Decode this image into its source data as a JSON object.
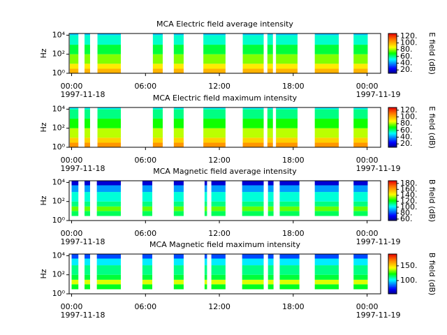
{
  "chart_data": [
    {
      "type": "heatmap",
      "title": "MCA  Electric field average intensity",
      "ylabel": "Hz",
      "colorbar_label": "E field (dB)",
      "xlim": [
        -0.2,
        25.1
      ],
      "ylim": [
        1,
        15000
      ],
      "clim": [
        10,
        128
      ],
      "log_y": true,
      "xticks": [
        {
          "value": 0,
          "label": "00:00",
          "date": "1997-11-18"
        },
        {
          "value": 6,
          "label": "06:00"
        },
        {
          "value": 12,
          "label": "12:00"
        },
        {
          "value": 18,
          "label": "18:00"
        },
        {
          "value": 24,
          "label": "00:00",
          "date": "1997-11-19"
        }
      ],
      "yticks": [
        {
          "value": 1,
          "label": "10⁰"
        },
        {
          "value": 100,
          "label": "10²"
        },
        {
          "value": 10000,
          "label": "10⁴"
        }
      ],
      "cticks": [
        {
          "value": 20,
          "label": "20."
        },
        {
          "value": 40,
          "label": "40."
        },
        {
          "value": 60,
          "label": "60."
        },
        {
          "value": 80,
          "label": "80."
        },
        {
          "value": 100,
          "label": "100."
        },
        {
          "value": 120,
          "label": "120."
        }
      ],
      "segments": [
        [
          -0.15,
          0.55
        ],
        [
          1.05,
          1.5
        ],
        [
          2.1,
          4.0
        ],
        [
          6.6,
          7.4
        ],
        [
          8.3,
          9.1
        ],
        [
          10.7,
          12.5
        ],
        [
          13.9,
          15.6
        ],
        [
          15.9,
          16.35
        ],
        [
          16.6,
          18.35
        ],
        [
          19.75,
          21.7
        ],
        [
          22.9,
          24.05
        ]
      ],
      "bands": [
        1,
        3,
        10,
        100,
        1000,
        10000,
        15000
      ],
      "levels": [
        100,
        90,
        78,
        65,
        55,
        45
      ]
    },
    {
      "type": "heatmap",
      "title": "MCA  Electric field maximum intensity",
      "ylabel": "Hz",
      "colorbar_label": "E field (dB)",
      "xlim": [
        -0.2,
        25.1
      ],
      "ylim": [
        1,
        15000
      ],
      "clim": [
        10,
        128
      ],
      "log_y": true,
      "xticks": [
        {
          "value": 0,
          "label": "00:00",
          "date": "1997-11-18"
        },
        {
          "value": 6,
          "label": "06:00"
        },
        {
          "value": 12,
          "label": "12:00"
        },
        {
          "value": 18,
          "label": "18:00"
        },
        {
          "value": 24,
          "label": "00:00",
          "date": "1997-11-19"
        }
      ],
      "yticks": [
        {
          "value": 1,
          "label": "10⁰"
        },
        {
          "value": 100,
          "label": "10²"
        },
        {
          "value": 10000,
          "label": "10⁴"
        }
      ],
      "cticks": [
        {
          "value": 20,
          "label": "20."
        },
        {
          "value": 40,
          "label": "40."
        },
        {
          "value": 60,
          "label": "60."
        },
        {
          "value": 80,
          "label": "80."
        },
        {
          "value": 100,
          "label": "100."
        },
        {
          "value": 120,
          "label": "120."
        }
      ],
      "segments": [
        [
          -0.15,
          0.55
        ],
        [
          1.05,
          1.5
        ],
        [
          2.1,
          4.0
        ],
        [
          6.6,
          7.4
        ],
        [
          8.3,
          9.1
        ],
        [
          10.7,
          12.5
        ],
        [
          13.9,
          15.6
        ],
        [
          15.9,
          16.35
        ],
        [
          16.6,
          18.35
        ],
        [
          19.75,
          21.7
        ],
        [
          22.9,
          24.05
        ]
      ],
      "bands": [
        1,
        3,
        10,
        100,
        1000,
        10000,
        15000
      ],
      "levels": [
        105,
        95,
        82,
        70,
        60,
        50
      ]
    },
    {
      "type": "heatmap",
      "title": "MCA  Magnetic field average intensity",
      "ylabel": "Hz",
      "colorbar_label": "B field (dB)",
      "xlim": [
        -0.2,
        25.1
      ],
      "ylim": [
        1,
        15000
      ],
      "clim": [
        55,
        189
      ],
      "log_y": true,
      "xticks": [
        {
          "value": 0,
          "label": "00:00",
          "date": "1997-11-18"
        },
        {
          "value": 6,
          "label": "06:00"
        },
        {
          "value": 12,
          "label": "12:00"
        },
        {
          "value": 18,
          "label": "18:00"
        },
        {
          "value": 24,
          "label": "00:00",
          "date": "1997-11-19"
        }
      ],
      "yticks": [
        {
          "value": 1,
          "label": "10⁰"
        },
        {
          "value": 100,
          "label": "10²"
        },
        {
          "value": 10000,
          "label": "10⁴"
        }
      ],
      "cticks": [
        {
          "value": 60,
          "label": "60."
        },
        {
          "value": 80,
          "label": "80."
        },
        {
          "value": 100,
          "label": "100."
        },
        {
          "value": 120,
          "label": "120."
        },
        {
          "value": 140,
          "label": "140."
        },
        {
          "value": 160,
          "label": "160."
        },
        {
          "value": 180,
          "label": "180."
        }
      ],
      "segments": [
        [
          0.0,
          0.55
        ],
        [
          1.05,
          1.5
        ],
        [
          2.05,
          4.0
        ],
        [
          5.75,
          6.55
        ],
        [
          8.3,
          9.1
        ],
        [
          10.8,
          11.0
        ],
        [
          11.35,
          12.5
        ],
        [
          13.85,
          15.6
        ],
        [
          15.95,
          16.4
        ],
        [
          16.9,
          18.5
        ],
        [
          19.75,
          21.7
        ],
        [
          22.9,
          24.05
        ]
      ],
      "bands": [
        3,
        10,
        30,
        100,
        1000,
        5000,
        15000
      ],
      "levels": [
        115,
        130,
        112,
        105,
        90,
        65
      ]
    },
    {
      "type": "heatmap",
      "title": "MCA  Magnetic field maximum intensity",
      "ylabel": "Hz",
      "colorbar_label": "B field (dB)",
      "xlim": [
        -0.2,
        25.1
      ],
      "ylim": [
        1,
        15000
      ],
      "clim": [
        55,
        190
      ],
      "log_y": true,
      "xticks": [
        {
          "value": 0,
          "label": "00:00",
          "date": "1997-11-18"
        },
        {
          "value": 6,
          "label": "06:00"
        },
        {
          "value": 12,
          "label": "12:00"
        },
        {
          "value": 18,
          "label": "18:00"
        },
        {
          "value": 24,
          "label": "00:00",
          "date": "1997-11-19"
        }
      ],
      "yticks": [
        {
          "value": 1,
          "label": "10⁰"
        },
        {
          "value": 100,
          "label": "10²"
        },
        {
          "value": 10000,
          "label": "10⁴"
        }
      ],
      "cticks": [
        {
          "value": 100,
          "label": "100."
        },
        {
          "value": 150,
          "label": "150."
        }
      ],
      "segments": [
        [
          0.0,
          0.55
        ],
        [
          1.05,
          1.5
        ],
        [
          2.05,
          4.0
        ],
        [
          5.75,
          6.55
        ],
        [
          8.3,
          9.1
        ],
        [
          10.8,
          11.0
        ],
        [
          11.35,
          12.5
        ],
        [
          13.85,
          15.6
        ],
        [
          15.95,
          16.4
        ],
        [
          16.9,
          18.5
        ],
        [
          19.75,
          21.7
        ],
        [
          22.9,
          24.05
        ]
      ],
      "bands": [
        3,
        10,
        30,
        100,
        1000,
        5000,
        15000
      ],
      "levels": [
        120,
        140,
        118,
        112,
        100,
        80
      ]
    }
  ]
}
